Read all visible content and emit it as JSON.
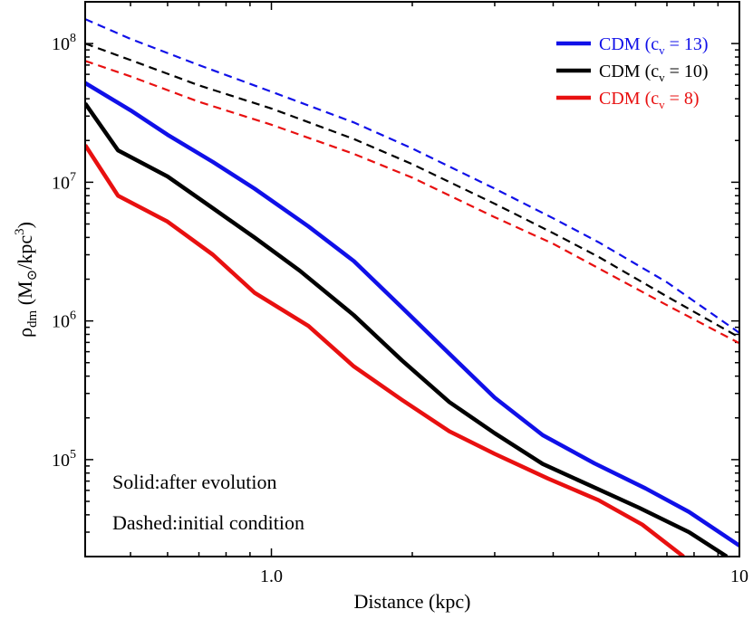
{
  "chart_data": {
    "type": "line",
    "x_scale": "log",
    "y_scale": "log",
    "xlim": [
      0.4,
      10
    ],
    "ylim": [
      20000,
      200000000
    ],
    "x_ticks": [
      {
        "value": 1.0,
        "label": "1.0"
      },
      {
        "value": 10,
        "label": "10"
      }
    ],
    "y_ticks": [
      {
        "value": 100000,
        "base": "10",
        "exp": "5"
      },
      {
        "value": 1000000,
        "base": "10",
        "exp": "6"
      },
      {
        "value": 10000000,
        "base": "10",
        "exp": "7"
      },
      {
        "value": 100000000,
        "base": "10",
        "exp": "8"
      }
    ],
    "xlabel": "Distance (kpc)",
    "ylabel": {
      "rho": "ρ",
      "sub": "dm",
      "unit_open": " (M",
      "sun": "⊙",
      "unit_mid": "/kpc",
      "sup": "3",
      "unit_close": ")"
    },
    "annotations": {
      "solid": "Solid:after evolution",
      "dashed": "Dashed:initial condition"
    },
    "series": [
      {
        "name": "CDM (c_v = 13)",
        "legend_main": "CDM (c",
        "legend_sub": "v",
        "legend_rest": " = 13)",
        "color": "#1010e8",
        "dashed": [
          [
            0.4,
            150000000
          ],
          [
            0.5,
            108000000
          ],
          [
            0.7,
            70000000
          ],
          [
            1.0,
            45000000
          ],
          [
            1.5,
            27000000
          ],
          [
            2.0,
            17500000
          ],
          [
            3.0,
            9000000
          ],
          [
            4.0,
            5500000
          ],
          [
            5.0,
            3700000
          ],
          [
            7.0,
            1900000
          ],
          [
            10.0,
            820000
          ]
        ],
        "solid": [
          [
            0.4,
            52000000
          ],
          [
            0.5,
            33000000
          ],
          [
            0.6,
            22000000
          ],
          [
            0.75,
            14000000
          ],
          [
            0.92,
            9000000
          ],
          [
            1.2,
            4800000
          ],
          [
            1.5,
            2700000
          ],
          [
            1.9,
            1250000
          ],
          [
            2.4,
            580000
          ],
          [
            3.0,
            280000
          ],
          [
            3.8,
            150000
          ],
          [
            4.9,
            94000
          ],
          [
            6.3,
            62000
          ],
          [
            7.8,
            42000
          ],
          [
            10.0,
            24000
          ]
        ]
      },
      {
        "name": "CDM (c_v = 10)",
        "legend_main": "CDM (c",
        "legend_sub": "v",
        "legend_rest": " = 10)",
        "color": "#000000",
        "dashed": [
          [
            0.4,
            100000000
          ],
          [
            0.5,
            76000000
          ],
          [
            0.7,
            50000000
          ],
          [
            1.0,
            34000000
          ],
          [
            1.5,
            20500000
          ],
          [
            2.0,
            13500000
          ],
          [
            3.0,
            7000000
          ],
          [
            4.0,
            4300000
          ],
          [
            5.0,
            2900000
          ],
          [
            7.0,
            1500000
          ],
          [
            10.0,
            760000
          ]
        ],
        "solid": [
          [
            0.4,
            37000000
          ],
          [
            0.47,
            17000000
          ],
          [
            0.6,
            11000000
          ],
          [
            0.75,
            6500000
          ],
          [
            0.92,
            4000000
          ],
          [
            1.15,
            2300000
          ],
          [
            1.5,
            1100000
          ],
          [
            1.9,
            520000
          ],
          [
            2.4,
            260000
          ],
          [
            3.0,
            155000
          ],
          [
            3.8,
            93000
          ],
          [
            4.8,
            65000
          ],
          [
            6.1,
            45000
          ],
          [
            7.8,
            30000
          ],
          [
            9.4,
            20000
          ]
        ]
      },
      {
        "name": "CDM (c_v = 8)",
        "legend_main": "CDM (c",
        "legend_sub": "v",
        "legend_rest": " = 8)",
        "color": "#e81010",
        "dashed": [
          [
            0.4,
            75000000
          ],
          [
            0.5,
            58000000
          ],
          [
            0.7,
            38000000
          ],
          [
            1.0,
            26000000
          ],
          [
            1.5,
            16000000
          ],
          [
            2.0,
            10800000
          ],
          [
            3.0,
            5600000
          ],
          [
            4.0,
            3600000
          ],
          [
            5.0,
            2400000
          ],
          [
            7.0,
            1300000
          ],
          [
            10.0,
            690000
          ]
        ],
        "solid": [
          [
            0.4,
            18500000
          ],
          [
            0.47,
            8000000
          ],
          [
            0.6,
            5200000
          ],
          [
            0.75,
            3000000
          ],
          [
            0.92,
            1600000
          ],
          [
            1.2,
            920000
          ],
          [
            1.5,
            470000
          ],
          [
            1.9,
            270000
          ],
          [
            2.4,
            160000
          ],
          [
            3.0,
            110000
          ],
          [
            3.9,
            73000
          ],
          [
            5.0,
            51000
          ],
          [
            6.2,
            34000
          ],
          [
            7.6,
            20000
          ]
        ]
      }
    ]
  }
}
